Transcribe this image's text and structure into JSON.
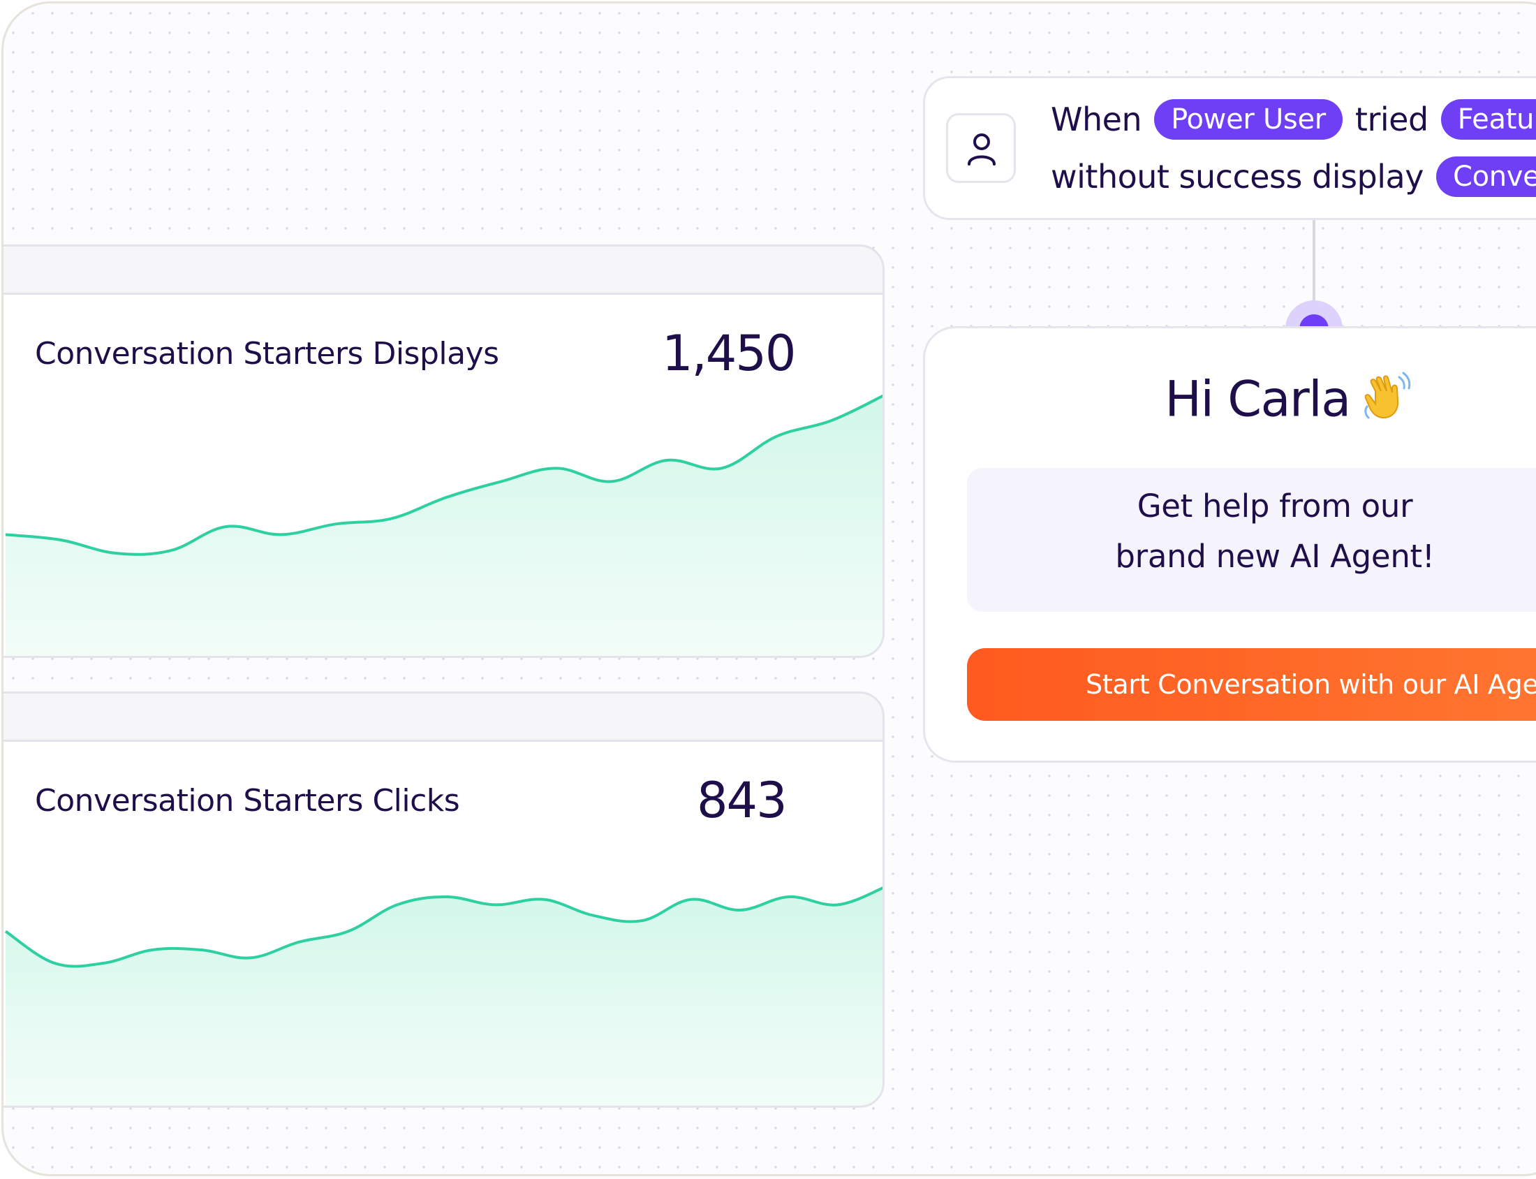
{
  "metrics": [
    {
      "title": "Conversation Starters Displays",
      "value": "1,450",
      "chart_data": {
        "type": "area",
        "series": [
          {
            "values": [
              42,
              40,
              35,
              36,
              45,
              42,
              46,
              48,
              56,
              62,
              67,
              62,
              70,
              67,
              79,
              85,
              95
            ]
          }
        ],
        "ylim": [
          0,
          100
        ]
      }
    },
    {
      "title": "Conversation Starters Clicks",
      "value": "843",
      "chart_data": {
        "type": "area",
        "series": [
          {
            "values": [
              62,
              50,
              50,
              55,
              55,
              52,
              58,
              62,
              72,
              75,
              72,
              74,
              68,
              66,
              74,
              70,
              75,
              72,
              79
            ]
          }
        ],
        "ylim": [
          0,
          100
        ]
      }
    }
  ],
  "trigger": {
    "icon": "user-icon",
    "line1": {
      "when": "When",
      "segment_pill": "Power User",
      "tried": "tried",
      "feature_pill": "Feature"
    },
    "line2": {
      "text": "without success display",
      "action_pill": "Conversa"
    }
  },
  "message": {
    "greeting": "Hi Carla",
    "greeting_emoji": "waving-hand-icon",
    "help_line1": "Get help from our",
    "help_line2": "brand new AI Agent!",
    "cta_label": "Start Conversation with our AI Agent"
  },
  "colors": {
    "accent_purple": "#6e3ff5",
    "chart_green": "#2ecfa0",
    "cta_orange": "#ff6424",
    "text_dark": "#1e0f4b"
  }
}
